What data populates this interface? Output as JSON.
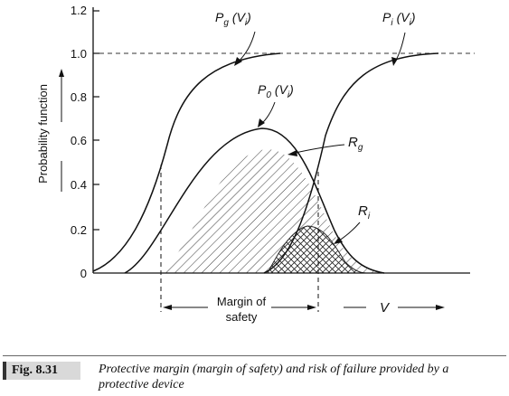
{
  "figure": {
    "y_axis": {
      "label": "Probability function",
      "ticks": [
        "0",
        "0.2",
        "0.4",
        "0.6",
        "0.8",
        "1.0",
        "1.2"
      ]
    },
    "x_axis": {
      "label": "V"
    },
    "curve_labels": {
      "pg": "P",
      "pg_sub": "g",
      "pg_arg": "(V",
      "pg_arg_sub": "i",
      "pi": "P",
      "pi_sub": "i",
      "pi_arg": "(V",
      "pi_arg_sub": "i",
      "p0": "P",
      "p0_sub": "0",
      "p0_arg": "(V",
      "p0_arg_sub": "i",
      "rg": "R",
      "rg_sub": "g",
      "ri": "R",
      "ri_sub": "i"
    },
    "margin_label_line1": "Margin of",
    "margin_label_line2": "safety"
  },
  "caption": {
    "fig_label": "Fig. 8.31",
    "text": "Protective margin (margin of safety) and risk of failure provided by a protective device"
  }
}
